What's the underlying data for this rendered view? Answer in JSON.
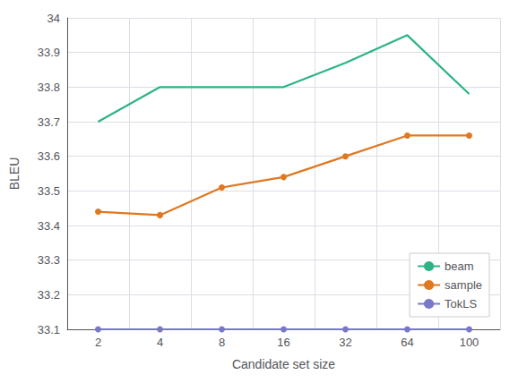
{
  "chart_data": {
    "type": "line",
    "xlabel": "Candidate set size",
    "ylabel": "BLEU",
    "categories": [
      "2",
      "4",
      "8",
      "16",
      "32",
      "64",
      "100"
    ],
    "series": [
      {
        "name": "beam",
        "color": "#2db386",
        "marker": "none",
        "values": [
          33.7,
          33.8,
          33.8,
          33.8,
          33.87,
          33.95,
          33.78
        ]
      },
      {
        "name": "sample",
        "color": "#e07820",
        "marker": "circle",
        "values": [
          33.44,
          33.43,
          33.51,
          33.54,
          33.6,
          33.66,
          33.66
        ]
      },
      {
        "name": "TokLS",
        "color": "#7878c8",
        "marker": "circle",
        "values": [
          33.1,
          33.1,
          33.1,
          33.1,
          33.1,
          33.1,
          33.1
        ]
      }
    ],
    "ylim": [
      33.1,
      34.0
    ],
    "yticks": [
      33.1,
      33.2,
      33.3,
      33.4,
      33.5,
      33.6,
      33.7,
      33.8,
      33.9,
      34
    ],
    "grid": true,
    "legend": "lower right"
  }
}
